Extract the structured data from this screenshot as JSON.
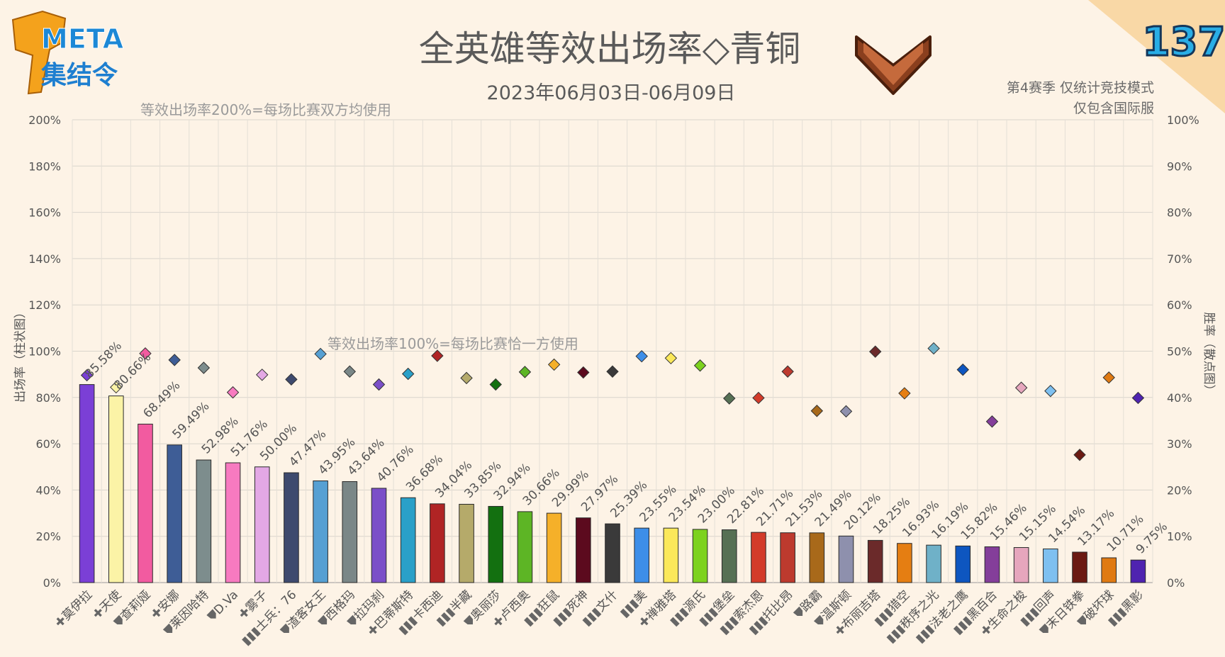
{
  "header": {
    "title": "全英雄等效出场率◇青铜",
    "date_range": "2023年06月03日-06月09日",
    "logo_line1": "META",
    "logo_line2": "集结令",
    "issue_number": "137",
    "note_line1": "第4赛季 仅统计竞技模式",
    "note_line2": "仅包含国际服",
    "rank_icon": "bronze-rank-chevron-icon"
  },
  "chart_data": {
    "type": "bar",
    "annotations": [
      "等效出场率200%=每场比赛双方均使用",
      "等效出场率100%=每场比赛恰一方使用"
    ],
    "ylabel_left": "出场率（柱状图）",
    "ylabel_right": "胜率（散点图）",
    "ylim_left": [
      0,
      200
    ],
    "ylim_right": [
      0,
      100
    ],
    "yticks_left": [
      "0%",
      "20%",
      "40%",
      "60%",
      "80%",
      "100%",
      "120%",
      "140%",
      "160%",
      "180%",
      "200%"
    ],
    "yticks_right": [
      "0%",
      "10%",
      "20%",
      "30%",
      "40%",
      "50%",
      "60%",
      "70%",
      "80%",
      "90%",
      "100%"
    ],
    "grid": true,
    "role_icons": {
      "support": "cross-icon",
      "tank": "shield-icon",
      "damage": "bullets-icon"
    },
    "heroes": [
      {
        "name": "莫伊拉",
        "role": "support",
        "pick_label": "85.58%",
        "pick": 85.58,
        "win": 44.8,
        "color": "#7b3fd6"
      },
      {
        "name": "天使",
        "role": "support",
        "pick_label": "80.66%",
        "pick": 80.66,
        "win": 42.2,
        "color": "#fbf3a6"
      },
      {
        "name": "查莉娅",
        "role": "tank",
        "pick_label": "68.49%",
        "pick": 68.49,
        "win": 49.5,
        "color": "#f25ba0"
      },
      {
        "name": "安娜",
        "role": "support",
        "pick_label": "59.49%",
        "pick": 59.49,
        "win": 48.1,
        "color": "#3e5d96"
      },
      {
        "name": "莱因哈特",
        "role": "tank",
        "pick_label": "52.98%",
        "pick": 52.98,
        "win": 46.4,
        "color": "#7d8d8d"
      },
      {
        "name": "D.Va",
        "role": "tank",
        "pick_label": "51.76%",
        "pick": 51.76,
        "win": 41.1,
        "color": "#f77ac0"
      },
      {
        "name": "雾子",
        "role": "support",
        "pick_label": "50.00%",
        "pick": 50.0,
        "win": 44.9,
        "color": "#e3a8e5"
      },
      {
        "name": "士兵：76",
        "role": "damage",
        "pick_label": "47.47%",
        "pick": 47.47,
        "win": 43.9,
        "color": "#3e4a6e"
      },
      {
        "name": "渣客女王",
        "role": "tank",
        "pick_label": "43.95%",
        "pick": 43.95,
        "win": 49.4,
        "color": "#56a0d3"
      },
      {
        "name": "西格玛",
        "role": "tank",
        "pick_label": "43.64%",
        "pick": 43.64,
        "win": 45.6,
        "color": "#7a8787"
      },
      {
        "name": "拉玛刹",
        "role": "tank",
        "pick_label": "40.76%",
        "pick": 40.76,
        "win": 42.8,
        "color": "#7b4fc8"
      },
      {
        "name": "巴蒂斯特",
        "role": "support",
        "pick_label": "36.68%",
        "pick": 36.68,
        "win": 45.1,
        "color": "#2aa0c8"
      },
      {
        "name": "卡西迪",
        "role": "damage",
        "pick_label": "34.04%",
        "pick": 34.04,
        "win": 49.0,
        "color": "#b02424"
      },
      {
        "name": "半藏",
        "role": "damage",
        "pick_label": "33.85%",
        "pick": 33.85,
        "win": 44.2,
        "color": "#b5aa6a"
      },
      {
        "name": "奥丽莎",
        "role": "tank",
        "pick_label": "32.94%",
        "pick": 32.94,
        "win": 42.8,
        "color": "#137010"
      },
      {
        "name": "卢西奥",
        "role": "support",
        "pick_label": "30.66%",
        "pick": 30.66,
        "win": 45.5,
        "color": "#5db525"
      },
      {
        "name": "狂鼠",
        "role": "damage",
        "pick_label": "29.99%",
        "pick": 29.99,
        "win": 47.1,
        "color": "#f5b029"
      },
      {
        "name": "死神",
        "role": "damage",
        "pick_label": "27.97%",
        "pick": 27.97,
        "win": 45.4,
        "color": "#5c0a1e"
      },
      {
        "name": "文什",
        "role": "damage",
        "pick_label": "25.39%",
        "pick": 25.39,
        "win": 45.6,
        "color": "#3a3a3a"
      },
      {
        "name": "美",
        "role": "damage",
        "pick_label": "23.55%",
        "pick": 23.55,
        "win": 48.9,
        "color": "#3d8ee8"
      },
      {
        "name": "禅雅塔",
        "role": "support",
        "pick_label": "23.54%",
        "pick": 23.54,
        "win": 48.5,
        "color": "#fbe85a"
      },
      {
        "name": "源氏",
        "role": "damage",
        "pick_label": "23.00%",
        "pick": 23.0,
        "win": 46.9,
        "color": "#7dd21e"
      },
      {
        "name": "堡垒",
        "role": "damage",
        "pick_label": "22.81%",
        "pick": 22.81,
        "win": 39.8,
        "color": "#567054"
      },
      {
        "name": "索杰恩",
        "role": "damage",
        "pick_label": "21.71%",
        "pick": 21.71,
        "win": 39.9,
        "color": "#d33b2a"
      },
      {
        "name": "托比昂",
        "role": "damage",
        "pick_label": "21.53%",
        "pick": 21.53,
        "win": 45.6,
        "color": "#bd3a2e"
      },
      {
        "name": "路霸",
        "role": "tank",
        "pick_label": "21.49%",
        "pick": 21.49,
        "win": 37.1,
        "color": "#a8691a"
      },
      {
        "name": "温斯顿",
        "role": "tank",
        "pick_label": "20.12%",
        "pick": 20.12,
        "win": 37.0,
        "color": "#8e90ad"
      },
      {
        "name": "布丽吉塔",
        "role": "support",
        "pick_label": "18.25%",
        "pick": 18.25,
        "win": 49.9,
        "color": "#6b2a2a"
      },
      {
        "name": "猎空",
        "role": "damage",
        "pick_label": "16.93%",
        "pick": 16.93,
        "win": 40.9,
        "color": "#e57e12"
      },
      {
        "name": "秩序之光",
        "role": "damage",
        "pick_label": "16.19%",
        "pick": 16.19,
        "win": 50.6,
        "color": "#6fb1c8"
      },
      {
        "name": "法老之鹰",
        "role": "damage",
        "pick_label": "15.82%",
        "pick": 15.82,
        "win": 46.0,
        "color": "#0e56c0"
      },
      {
        "name": "黑百合",
        "role": "damage",
        "pick_label": "15.46%",
        "pick": 15.46,
        "win": 34.8,
        "color": "#843e9a"
      },
      {
        "name": "生命之梭",
        "role": "support",
        "pick_label": "15.15%",
        "pick": 15.15,
        "win": 42.1,
        "color": "#e6a6bd"
      },
      {
        "name": "回声",
        "role": "damage",
        "pick_label": "14.54%",
        "pick": 14.54,
        "win": 41.4,
        "color": "#7ec0f0"
      },
      {
        "name": "末日铁拳",
        "role": "tank",
        "pick_label": "13.17%",
        "pick": 13.17,
        "win": 27.6,
        "color": "#6b1a12"
      },
      {
        "name": "破坏球",
        "role": "tank",
        "pick_label": "10.71%",
        "pick": 10.71,
        "win": 44.3,
        "color": "#e07a12"
      },
      {
        "name": "黑影",
        "role": "damage",
        "pick_label": "9.75%",
        "pick": 9.75,
        "win": 39.9,
        "color": "#4f23b0"
      }
    ]
  }
}
